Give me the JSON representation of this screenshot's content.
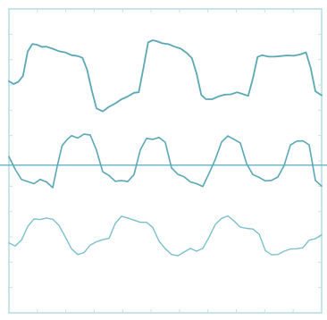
{
  "chart_data": {
    "type": "line",
    "title": "",
    "xlabel": "",
    "ylabel": "",
    "grid": false,
    "legend": "none",
    "xlim": [
      0,
      100
    ],
    "ylim": [
      0,
      100
    ],
    "baseline_y": 48.6,
    "colors": {
      "frame": "#b9dde6",
      "tick": "#c4e2ea",
      "baseline": "#6fb9c6"
    },
    "series": [
      {
        "color": "#5aa7b6",
        "width": 1.8,
        "x": [
          0,
          1.5,
          3,
          4.5,
          6,
          7.5,
          9,
          10.5,
          12,
          14,
          16,
          18,
          20,
          22,
          23.5,
          25,
          26.5,
          28,
          30,
          32,
          34,
          36,
          38,
          40,
          41.5,
          43,
          44.5,
          46,
          47.5,
          49,
          51,
          53,
          55,
          57,
          58.5,
          60,
          61.5,
          63,
          65,
          67,
          69,
          71,
          73,
          75,
          76.5,
          78,
          79.5,
          81,
          83,
          85,
          87,
          89,
          91,
          93,
          95,
          96.5,
          98,
          100
        ],
        "y": [
          76.2,
          75.3,
          76,
          78,
          86,
          88.5,
          88.2,
          87.5,
          87.6,
          86.9,
          86.1,
          85.7,
          84.8,
          84.5,
          83.9,
          80,
          73.1,
          67.3,
          66.3,
          67.8,
          68.9,
          70.3,
          71.2,
          72.4,
          72.6,
          80.5,
          89,
          89.7,
          89.3,
          88.7,
          88.4,
          87.6,
          86.9,
          85.4,
          83.8,
          78.8,
          71.7,
          70.3,
          70.3,
          71.2,
          71.8,
          71.9,
          72.6,
          71.9,
          71.4,
          77.1,
          84.2,
          84.8,
          84.3,
          84.3,
          84.5,
          84.7,
          84.6,
          85,
          85.7,
          80.5,
          72.9,
          71.6
        ]
      },
      {
        "color": "#5aa7b6",
        "width": 1.6,
        "x": [
          0,
          2,
          4,
          6,
          8,
          10,
          12,
          14,
          15.5,
          17,
          18.5,
          20,
          22,
          24,
          26,
          28,
          30,
          32,
          34,
          36,
          38,
          40,
          42,
          44,
          46,
          48,
          50,
          52,
          54,
          56,
          58,
          60,
          62,
          64,
          66,
          68,
          70,
          72,
          74,
          76,
          78,
          80,
          82,
          84,
          86,
          88,
          90,
          92,
          94,
          96,
          98,
          100
        ],
        "y": [
          51.4,
          47.2,
          43.9,
          43.2,
          42.5,
          43.9,
          43.1,
          41.2,
          48.6,
          55,
          56.9,
          58.3,
          57.5,
          58.8,
          58.5,
          53.5,
          46.4,
          45.2,
          43.3,
          43.5,
          43.2,
          45.5,
          53.6,
          57.4,
          57.1,
          57.7,
          56.1,
          47.7,
          45.6,
          44.8,
          43.1,
          42.5,
          41.6,
          45.9,
          50.5,
          56.2,
          58.2,
          57.1,
          55.9,
          49.1,
          45.5,
          44.6,
          43.4,
          43.6,
          44.7,
          48.5,
          55.2,
          56.5,
          56.6,
          55.3,
          43.6,
          41.7
        ]
      },
      {
        "color": "#7cc0cc",
        "width": 1.4,
        "x": [
          0,
          2,
          4,
          6,
          8,
          10,
          12,
          14,
          16,
          18,
          20,
          22,
          24,
          26,
          28,
          30,
          32,
          34,
          36,
          38,
          40,
          42,
          44,
          46,
          48,
          50,
          52,
          54,
          56,
          58,
          60,
          62,
          64,
          66,
          68,
          70,
          72,
          74,
          76,
          78,
          80,
          82,
          84,
          86,
          88,
          90,
          92,
          94,
          96,
          98,
          100
        ],
        "y": [
          23,
          22,
          23.9,
          28.4,
          30.9,
          30.7,
          31.2,
          30.8,
          28.8,
          25,
          21.1,
          19.2,
          19.8,
          22.3,
          23.4,
          24.1,
          24.5,
          29.4,
          31.8,
          31.2,
          30.5,
          29.8,
          29.8,
          28.1,
          23.6,
          21.1,
          19.2,
          18.8,
          20,
          21.2,
          20.3,
          21.2,
          24.9,
          29.1,
          31.1,
          31.9,
          30.2,
          28.2,
          27.8,
          27.6,
          25.9,
          20.5,
          19.1,
          19.2,
          20.3,
          21,
          21.1,
          21.4,
          23.9,
          24.4,
          25.7
        ]
      }
    ]
  }
}
